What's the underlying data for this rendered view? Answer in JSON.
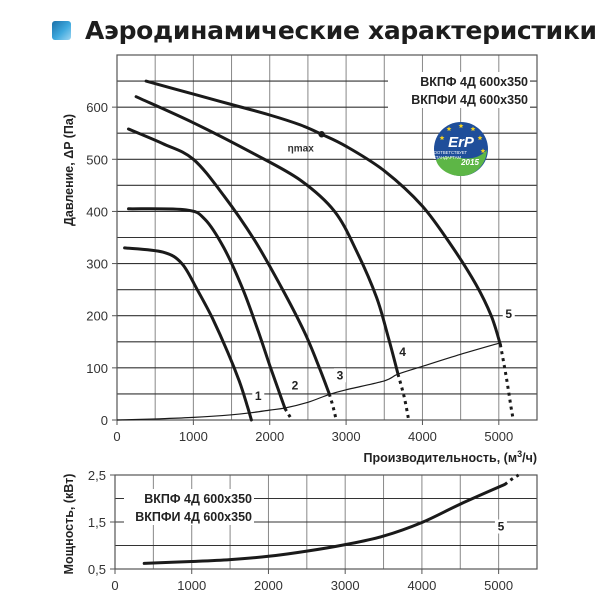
{
  "header": {
    "title": "Аэродинамические характеристики",
    "icon": "square-gradient-icon"
  },
  "chart_data": [
    {
      "type": "line",
      "title": "Аэродинамические характеристики",
      "xlabel": "Производительность, (м³/ч)",
      "ylabel": "Давление, ΔP (Па)",
      "xlim": [
        0,
        5500
      ],
      "ylim": [
        0,
        700
      ],
      "x_ticks": [
        0,
        1000,
        2000,
        3000,
        4000,
        5000
      ],
      "y_ticks": [
        0,
        100,
        200,
        300,
        400,
        500,
        600
      ],
      "grid": {
        "x_step": 500,
        "y_step": 50
      },
      "legend_models": [
        "ВКПФ  4Д 600x350",
        "ВКПФИ  4Д 600x350"
      ],
      "annotation_eta": {
        "label": "ηmax",
        "x": 2680,
        "y": 548
      },
      "series": [
        {
          "name": "1",
          "label_at": [
            1850,
            40
          ],
          "points": [
            [
              100,
              330
            ],
            [
              600,
              322
            ],
            [
              850,
              300
            ],
            [
              1050,
              250
            ],
            [
              1250,
              195
            ],
            [
              1450,
              130
            ],
            [
              1600,
              75
            ],
            [
              1700,
              30
            ],
            [
              1760,
              0
            ]
          ],
          "dotted": []
        },
        {
          "name": "2",
          "label_at": [
            2330,
            60
          ],
          "points": [
            [
              150,
              405
            ],
            [
              900,
              403
            ],
            [
              1150,
              385
            ],
            [
              1400,
              330
            ],
            [
              1650,
              250
            ],
            [
              1850,
              170
            ],
            [
              2000,
              105
            ],
            [
              2120,
              55
            ],
            [
              2200,
              22
            ]
          ],
          "dotted": [
            [
              2200,
              22
            ],
            [
              2250,
              10
            ],
            [
              2290,
              0
            ]
          ]
        },
        {
          "name": "3",
          "label_at": [
            2920,
            80
          ],
          "points": [
            [
              150,
              558
            ],
            [
              600,
              530
            ],
            [
              1000,
              500
            ],
            [
              1400,
              430
            ],
            [
              1800,
              345
            ],
            [
              2150,
              255
            ],
            [
              2450,
              170
            ],
            [
              2650,
              100
            ],
            [
              2780,
              50
            ]
          ],
          "dotted": [
            [
              2780,
              50
            ],
            [
              2830,
              25
            ],
            [
              2870,
              0
            ]
          ]
        },
        {
          "name": "4",
          "label_at": [
            3740,
            125
          ],
          "points": [
            [
              250,
              620
            ],
            [
              1000,
              570
            ],
            [
              1800,
              510
            ],
            [
              2400,
              460
            ],
            [
              2850,
              400
            ],
            [
              3150,
              320
            ],
            [
              3400,
              235
            ],
            [
              3550,
              160
            ],
            [
              3680,
              88
            ]
          ],
          "dotted": [
            [
              3680,
              88
            ],
            [
              3760,
              45
            ],
            [
              3820,
              0
            ]
          ]
        },
        {
          "name": "5",
          "label_at": [
            5130,
            198
          ],
          "points": [
            [
              380,
              650
            ],
            [
              1000,
              625
            ],
            [
              1500,
              605
            ],
            [
              2000,
              585
            ],
            [
              2400,
              566
            ],
            [
              2680,
              548
            ],
            [
              3000,
              525
            ],
            [
              3500,
              478
            ],
            [
              4000,
              410
            ],
            [
              4400,
              330
            ],
            [
              4700,
              260
            ],
            [
              4900,
              200
            ],
            [
              5020,
              145
            ]
          ],
          "dotted": [
            [
              5020,
              145
            ],
            [
              5100,
              80
            ],
            [
              5160,
              25
            ],
            [
              5190,
              0
            ]
          ]
        }
      ],
      "system_curve": {
        "name": "system",
        "points": [
          [
            0,
            0
          ],
          [
            500,
            2
          ],
          [
            1000,
            5
          ],
          [
            1500,
            10
          ],
          [
            1760,
            14
          ],
          [
            2000,
            19
          ],
          [
            2200,
            23
          ],
          [
            2500,
            34
          ],
          [
            2780,
            49
          ],
          [
            3000,
            58
          ],
          [
            3500,
            75
          ],
          [
            3680,
            88
          ],
          [
            4000,
            103
          ],
          [
            4500,
            126
          ],
          [
            5020,
            148
          ]
        ]
      }
    },
    {
      "type": "line",
      "title": "",
      "xlabel": "",
      "ylabel": "Мощность, (кВт)",
      "xlim": [
        0,
        5500
      ],
      "ylim": [
        0.5,
        2.5
      ],
      "x_ticks": [
        0,
        1000,
        2000,
        3000,
        4000,
        5000
      ],
      "y_ticks": [
        "0,5",
        "1,5",
        "2,5"
      ],
      "y_tick_values": [
        0.5,
        1.5,
        2.5
      ],
      "grid": {
        "x_step": 500,
        "y_step": 0.5
      },
      "legend_models": [
        "ВКПФ  4Д 600x350",
        "ВКПФИ  4Д 600x350"
      ],
      "series": [
        {
          "name": "5",
          "label_at": [
            5030,
            1.34
          ],
          "points": [
            [
              380,
              0.62
            ],
            [
              1000,
              0.66
            ],
            [
              1500,
              0.7
            ],
            [
              2000,
              0.77
            ],
            [
              2500,
              0.88
            ],
            [
              3000,
              1.02
            ],
            [
              3500,
              1.2
            ],
            [
              4000,
              1.49
            ],
            [
              4500,
              1.88
            ],
            [
              5080,
              2.3
            ]
          ],
          "dotted": [
            [
              5080,
              2.3
            ],
            [
              5180,
              2.42
            ],
            [
              5260,
              2.5
            ]
          ]
        }
      ]
    }
  ],
  "badge": {
    "name": "ErP",
    "line1": "СООТВЕТСТВУЕТ",
    "line2": "СТАНДАРТАМ",
    "year": "2015",
    "colors": {
      "blue": "#1f4e9a",
      "green": "#5db646",
      "star": "#f4d21f"
    }
  },
  "colors": {
    "grid": "#888888",
    "grid_major": "#333333",
    "curve": "#1a1a1a",
    "text": "#222222"
  }
}
